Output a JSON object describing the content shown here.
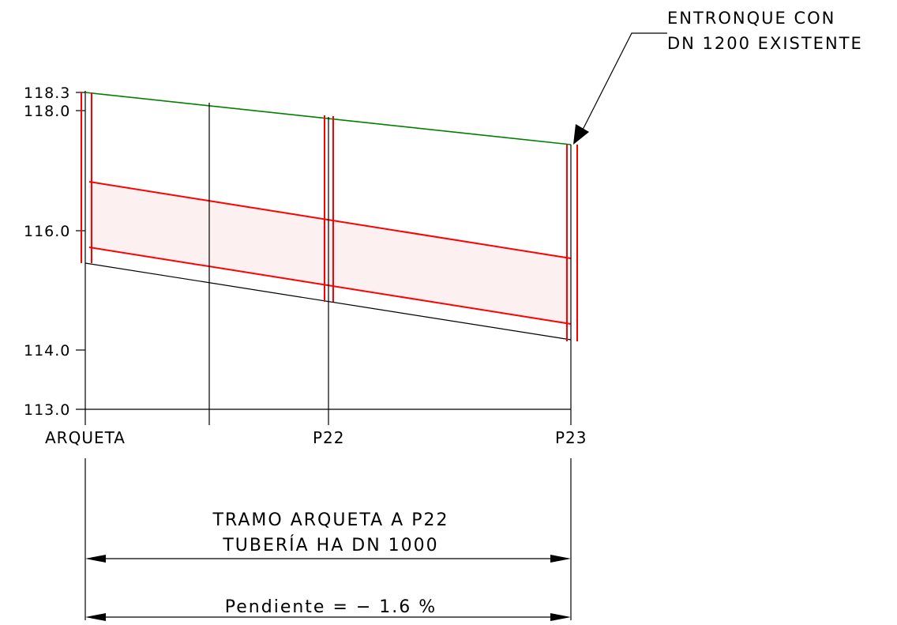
{
  "axis": {
    "levels": [
      "118.3",
      "118.0",
      "116.0",
      "114.0",
      "113.0"
    ]
  },
  "stations": {
    "arqueta": "ARQUETA",
    "p22": "P22",
    "p23": "P23"
  },
  "callout": {
    "line1": "ENTRONQUE CON",
    "line2": "DN 1200 EXISTENTE"
  },
  "section": {
    "title_line1": "TRAMO ARQUETA A P22",
    "title_line2": "TUBERÍA HA DN 1000",
    "slope": "Pendiente = − 1.6 %"
  },
  "colors": {
    "ground_line": "#008000",
    "pipe": "#ff0000",
    "pipe_fill": "#fdf0f0",
    "lines": "#000000"
  }
}
